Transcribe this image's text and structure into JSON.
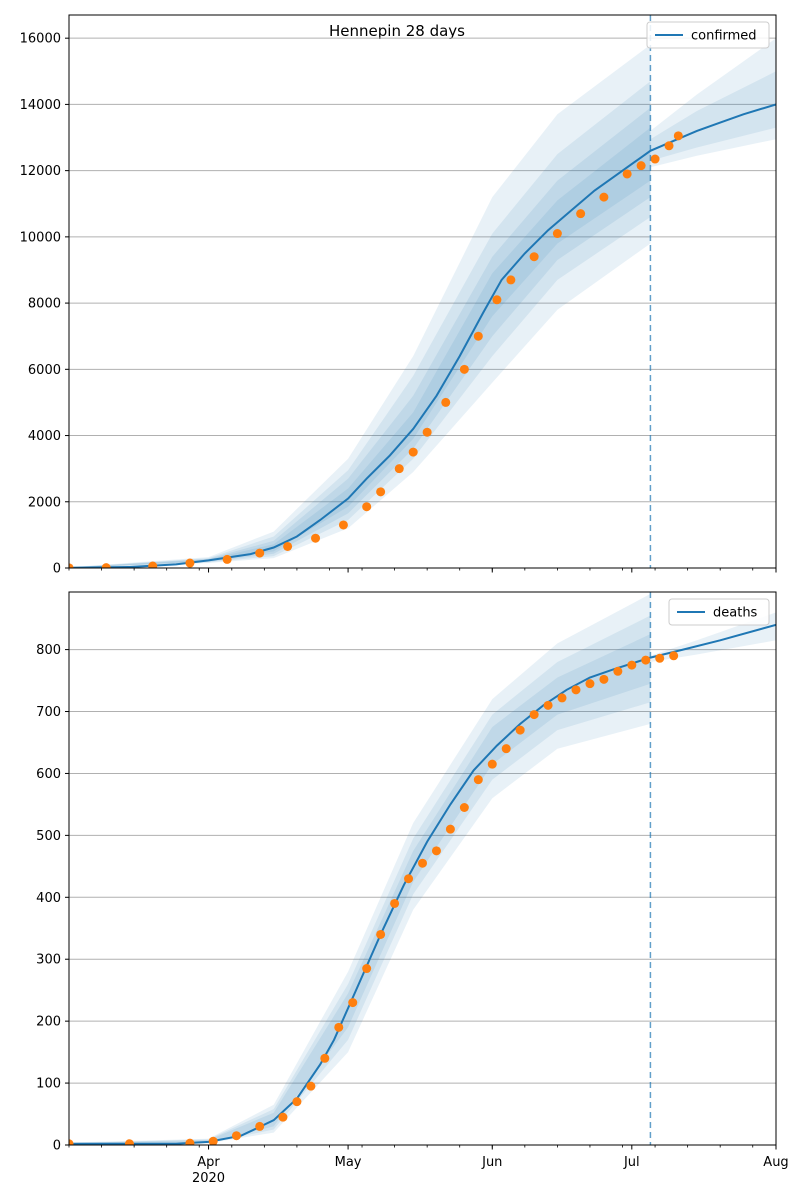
{
  "figure": {
    "title": "Hennepin 28 days"
  },
  "colors": {
    "model": "#1f77b4",
    "observed": "#ff7f0e",
    "band": "#1f77b4",
    "grid": "#b0b0b0"
  },
  "x_axis": {
    "ticks": [
      {
        "date": "2020-04-01",
        "label": "Apr",
        "sublabel": "2020"
      },
      {
        "date": "2020-05-01",
        "label": "May",
        "sublabel": ""
      },
      {
        "date": "2020-06-01",
        "label": "Jun",
        "sublabel": ""
      },
      {
        "date": "2020-07-01",
        "label": "Jul",
        "sublabel": ""
      },
      {
        "date": "2020-08-01",
        "label": "Aug",
        "sublabel": ""
      }
    ],
    "xlim": [
      "2020-03-02",
      "2020-08-01"
    ],
    "forecast_start": "2020-07-05"
  },
  "chart_data": [
    {
      "type": "line",
      "legend": "confirmed",
      "legend_position": "top-right",
      "grid": "horizontal",
      "ylim": [
        0,
        16700
      ],
      "yticks": [
        0,
        2000,
        4000,
        6000,
        8000,
        10000,
        12000,
        14000,
        16000
      ],
      "model": [
        [
          "2020-03-02",
          10
        ],
        [
          "2020-03-15",
          30
        ],
        [
          "2020-03-25",
          110
        ],
        [
          "2020-04-01",
          230
        ],
        [
          "2020-04-10",
          420
        ],
        [
          "2020-04-15",
          620
        ],
        [
          "2020-04-20",
          950
        ],
        [
          "2020-04-25",
          1450
        ],
        [
          "2020-05-01",
          2100
        ],
        [
          "2020-05-05",
          2700
        ],
        [
          "2020-05-10",
          3400
        ],
        [
          "2020-05-15",
          4200
        ],
        [
          "2020-05-20",
          5200
        ],
        [
          "2020-05-25",
          6400
        ],
        [
          "2020-05-30",
          7700
        ],
        [
          "2020-06-03",
          8700
        ],
        [
          "2020-06-08",
          9500
        ],
        [
          "2020-06-13",
          10200
        ],
        [
          "2020-06-18",
          10800
        ],
        [
          "2020-06-23",
          11400
        ],
        [
          "2020-06-28",
          11900
        ],
        [
          "2020-07-03",
          12400
        ],
        [
          "2020-07-05",
          12600
        ],
        [
          "2020-07-10",
          12900
        ],
        [
          "2020-07-15",
          13200
        ],
        [
          "2020-07-20",
          13450
        ],
        [
          "2020-07-25",
          13700
        ],
        [
          "2020-08-01",
          14000
        ]
      ],
      "bands": [
        {
          "lower": [
            [
              "2020-03-02",
              0
            ],
            [
              "2020-04-01",
              150
            ],
            [
              "2020-04-15",
              300
            ],
            [
              "2020-05-01",
              1200
            ],
            [
              "2020-05-15",
              2900
            ],
            [
              "2020-06-01",
              5600
            ],
            [
              "2020-06-15",
              7800
            ],
            [
              "2020-07-05",
              9800
            ]
          ],
          "upper": [
            [
              "2020-03-02",
              20
            ],
            [
              "2020-04-01",
              330
            ],
            [
              "2020-04-15",
              1100
            ],
            [
              "2020-05-01",
              3300
            ],
            [
              "2020-05-15",
              6400
            ],
            [
              "2020-06-01",
              11200
            ],
            [
              "2020-06-15",
              13700
            ],
            [
              "2020-07-05",
              15800
            ]
          ]
        },
        {
          "lower": [
            [
              "2020-03-02",
              0
            ],
            [
              "2020-04-01",
              170
            ],
            [
              "2020-04-15",
              360
            ],
            [
              "2020-05-01",
              1450
            ],
            [
              "2020-05-15",
              3300
            ],
            [
              "2020-06-01",
              6400
            ],
            [
              "2020-06-15",
              8700
            ],
            [
              "2020-07-05",
              10600
            ]
          ],
          "upper": [
            [
              "2020-03-02",
              18
            ],
            [
              "2020-04-01",
              300
            ],
            [
              "2020-04-15",
              950
            ],
            [
              "2020-05-01",
              2950
            ],
            [
              "2020-05-15",
              5800
            ],
            [
              "2020-06-01",
              10100
            ],
            [
              "2020-06-15",
              12500
            ],
            [
              "2020-07-05",
              14700
            ]
          ]
        },
        {
          "lower": [
            [
              "2020-03-02",
              0
            ],
            [
              "2020-04-01",
              190
            ],
            [
              "2020-04-15",
              430
            ],
            [
              "2020-05-01",
              1650
            ],
            [
              "2020-05-15",
              3600
            ],
            [
              "2020-06-01",
              7000
            ],
            [
              "2020-06-15",
              9300
            ],
            [
              "2020-07-05",
              11200
            ]
          ],
          "upper": [
            [
              "2020-03-02",
              15
            ],
            [
              "2020-04-01",
              280
            ],
            [
              "2020-04-15",
              820
            ],
            [
              "2020-05-01",
              2700
            ],
            [
              "2020-05-15",
              5200
            ],
            [
              "2020-06-01",
              9400
            ],
            [
              "2020-06-15",
              11700
            ],
            [
              "2020-07-05",
              13900
            ]
          ]
        },
        {
          "lower": [
            [
              "2020-03-02",
              0
            ],
            [
              "2020-04-01",
              210
            ],
            [
              "2020-04-15",
              500
            ],
            [
              "2020-05-01",
              1850
            ],
            [
              "2020-05-15",
              3900
            ],
            [
              "2020-06-01",
              7600
            ],
            [
              "2020-06-15",
              9800
            ],
            [
              "2020-07-05",
              11700
            ]
          ],
          "upper": [
            [
              "2020-03-02",
              12
            ],
            [
              "2020-04-01",
              260
            ],
            [
              "2020-04-15",
              720
            ],
            [
              "2020-05-01",
              2400
            ],
            [
              "2020-05-15",
              4700
            ],
            [
              "2020-06-01",
              8900
            ],
            [
              "2020-06-15",
              11100
            ],
            [
              "2020-07-05",
              13300
            ]
          ]
        },
        {
          "lower": [
            [
              "2020-07-05",
              12100
            ],
            [
              "2020-07-15",
              12450
            ],
            [
              "2020-08-01",
              12950
            ]
          ],
          "upper": [
            [
              "2020-07-05",
              13200
            ],
            [
              "2020-07-15",
              14300
            ],
            [
              "2020-08-01",
              16000
            ]
          ]
        },
        {
          "lower": [
            [
              "2020-07-05",
              12300
            ],
            [
              "2020-07-15",
              12700
            ],
            [
              "2020-08-01",
              13300
            ]
          ],
          "upper": [
            [
              "2020-07-05",
              12950
            ],
            [
              "2020-07-15",
              13800
            ],
            [
              "2020-08-01",
              15000
            ]
          ]
        }
      ],
      "observed": [
        [
          "2020-03-02",
          5
        ],
        [
          "2020-03-10",
          10
        ],
        [
          "2020-03-20",
          60
        ],
        [
          "2020-03-28",
          150
        ],
        [
          "2020-04-05",
          260
        ],
        [
          "2020-04-12",
          450
        ],
        [
          "2020-04-18",
          650
        ],
        [
          "2020-04-24",
          900
        ],
        [
          "2020-04-30",
          1300
        ],
        [
          "2020-05-05",
          1850
        ],
        [
          "2020-05-08",
          2300
        ],
        [
          "2020-05-12",
          3000
        ],
        [
          "2020-05-15",
          3500
        ],
        [
          "2020-05-18",
          4100
        ],
        [
          "2020-05-22",
          5000
        ],
        [
          "2020-05-26",
          6000
        ],
        [
          "2020-05-29",
          7000
        ],
        [
          "2020-06-02",
          8100
        ],
        [
          "2020-06-05",
          8700
        ],
        [
          "2020-06-10",
          9400
        ],
        [
          "2020-06-15",
          10100
        ],
        [
          "2020-06-20",
          10700
        ],
        [
          "2020-06-25",
          11200
        ],
        [
          "2020-06-30",
          11900
        ],
        [
          "2020-07-03",
          12150
        ],
        [
          "2020-07-06",
          12350
        ],
        [
          "2020-07-09",
          12750
        ],
        [
          "2020-07-11",
          13050
        ]
      ]
    },
    {
      "type": "line",
      "legend": "deaths",
      "legend_position": "top-right",
      "grid": "horizontal",
      "ylim": [
        0,
        893
      ],
      "yticks": [
        0,
        100,
        200,
        300,
        400,
        500,
        600,
        700,
        800
      ],
      "model": [
        [
          "2020-03-02",
          2
        ],
        [
          "2020-03-25",
          2
        ],
        [
          "2020-04-01",
          5
        ],
        [
          "2020-04-08",
          15
        ],
        [
          "2020-04-15",
          40
        ],
        [
          "2020-04-20",
          75
        ],
        [
          "2020-04-25",
          130
        ],
        [
          "2020-04-28",
          170
        ],
        [
          "2020-05-03",
          255
        ],
        [
          "2020-05-08",
          340
        ],
        [
          "2020-05-13",
          420
        ],
        [
          "2020-05-18",
          490
        ],
        [
          "2020-05-23",
          550
        ],
        [
          "2020-05-28",
          605
        ],
        [
          "2020-06-02",
          645
        ],
        [
          "2020-06-07",
          680
        ],
        [
          "2020-06-12",
          710
        ],
        [
          "2020-06-17",
          735
        ],
        [
          "2020-06-22",
          755
        ],
        [
          "2020-06-27",
          768
        ],
        [
          "2020-07-02",
          780
        ],
        [
          "2020-07-05",
          787
        ],
        [
          "2020-07-12",
          800
        ],
        [
          "2020-07-20",
          815
        ],
        [
          "2020-08-01",
          840
        ]
      ],
      "bands": [
        {
          "lower": [
            [
              "2020-03-02",
              0
            ],
            [
              "2020-04-01",
              3
            ],
            [
              "2020-04-15",
              20
            ],
            [
              "2020-05-01",
              150
            ],
            [
              "2020-05-15",
              380
            ],
            [
              "2020-06-01",
              560
            ],
            [
              "2020-06-15",
              640
            ],
            [
              "2020-07-05",
              680
            ]
          ],
          "upper": [
            [
              "2020-03-02",
              4
            ],
            [
              "2020-04-01",
              10
            ],
            [
              "2020-04-15",
              65
            ],
            [
              "2020-05-01",
              280
            ],
            [
              "2020-05-15",
              520
            ],
            [
              "2020-06-01",
              720
            ],
            [
              "2020-06-15",
              810
            ],
            [
              "2020-07-05",
              890
            ]
          ]
        },
        {
          "lower": [
            [
              "2020-03-02",
              0
            ],
            [
              "2020-04-01",
              3
            ],
            [
              "2020-04-15",
              25
            ],
            [
              "2020-05-01",
              170
            ],
            [
              "2020-05-15",
              405
            ],
            [
              "2020-06-01",
              590
            ],
            [
              "2020-06-15",
              670
            ],
            [
              "2020-07-05",
              715
            ]
          ],
          "upper": [
            [
              "2020-03-02",
              3
            ],
            [
              "2020-04-01",
              9
            ],
            [
              "2020-04-15",
              58
            ],
            [
              "2020-05-01",
              260
            ],
            [
              "2020-05-15",
              495
            ],
            [
              "2020-06-01",
              695
            ],
            [
              "2020-06-15",
              780
            ],
            [
              "2020-07-05",
              855
            ]
          ]
        },
        {
          "lower": [
            [
              "2020-03-02",
              0
            ],
            [
              "2020-04-01",
              4
            ],
            [
              "2020-04-15",
              30
            ],
            [
              "2020-05-01",
              190
            ],
            [
              "2020-05-15",
              425
            ],
            [
              "2020-06-01",
              615
            ],
            [
              "2020-06-15",
              695
            ],
            [
              "2020-07-05",
              745
            ]
          ],
          "upper": [
            [
              "2020-03-02",
              3
            ],
            [
              "2020-04-01",
              8
            ],
            [
              "2020-04-15",
              52
            ],
            [
              "2020-05-01",
              245
            ],
            [
              "2020-05-15",
              475
            ],
            [
              "2020-06-01",
              675
            ],
            [
              "2020-06-15",
              755
            ],
            [
              "2020-07-05",
              825
            ]
          ]
        },
        {
          "lower": [
            [
              "2020-07-05",
              780
            ],
            [
              "2020-07-15",
              792
            ],
            [
              "2020-08-01",
              815
            ]
          ],
          "upper": [
            [
              "2020-07-05",
              790
            ],
            [
              "2020-07-15",
              815
            ],
            [
              "2020-08-01",
              860
            ]
          ]
        }
      ],
      "observed": [
        [
          "2020-03-02",
          2
        ],
        [
          "2020-03-15",
          2
        ],
        [
          "2020-03-28",
          3
        ],
        [
          "2020-04-02",
          6
        ],
        [
          "2020-04-07",
          15
        ],
        [
          "2020-04-12",
          30
        ],
        [
          "2020-04-17",
          45
        ],
        [
          "2020-04-20",
          70
        ],
        [
          "2020-04-23",
          95
        ],
        [
          "2020-04-26",
          140
        ],
        [
          "2020-04-29",
          190
        ],
        [
          "2020-05-02",
          230
        ],
        [
          "2020-05-05",
          285
        ],
        [
          "2020-05-08",
          340
        ],
        [
          "2020-05-11",
          390
        ],
        [
          "2020-05-14",
          430
        ],
        [
          "2020-05-17",
          455
        ],
        [
          "2020-05-20",
          475
        ],
        [
          "2020-05-23",
          510
        ],
        [
          "2020-05-26",
          545
        ],
        [
          "2020-05-29",
          590
        ],
        [
          "2020-06-01",
          615
        ],
        [
          "2020-06-04",
          640
        ],
        [
          "2020-06-07",
          670
        ],
        [
          "2020-06-10",
          695
        ],
        [
          "2020-06-13",
          710
        ],
        [
          "2020-06-16",
          722
        ],
        [
          "2020-06-19",
          735
        ],
        [
          "2020-06-22",
          745
        ],
        [
          "2020-06-25",
          752
        ],
        [
          "2020-06-28",
          765
        ],
        [
          "2020-07-01",
          775
        ],
        [
          "2020-07-04",
          783
        ],
        [
          "2020-07-07",
          786
        ],
        [
          "2020-07-10",
          790
        ]
      ]
    }
  ]
}
